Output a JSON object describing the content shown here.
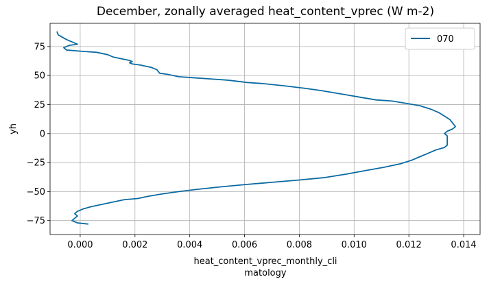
{
  "chart_data": {
    "type": "line",
    "title": "December, zonally averaged heat_content_vprec (W m-2)",
    "xlabel_lines": [
      "heat_content_vprec_monthly_cli",
      "matology"
    ],
    "ylabel": "yh",
    "xlim": [
      -0.0011,
      0.0146
    ],
    "ylim": [
      -87,
      95
    ],
    "xticks": [
      0.0,
      0.002,
      0.004,
      0.006,
      0.008,
      0.01,
      0.012,
      0.014
    ],
    "xtick_labels": [
      "0.000",
      "0.002",
      "0.004",
      "0.006",
      "0.008",
      "0.010",
      "0.012",
      "0.014"
    ],
    "yticks": [
      -75,
      -50,
      -25,
      0,
      25,
      50,
      75
    ],
    "ytick_labels": [
      "−75",
      "−50",
      "−25",
      "0",
      "25",
      "50",
      "75"
    ],
    "grid": true,
    "legend": {
      "position": "top-right",
      "entries": [
        "070"
      ]
    },
    "colors": {
      "series": "#0a6aa1"
    },
    "series": [
      {
        "name": "070",
        "points": [
          [
            -0.00085,
            88
          ],
          [
            -0.0008,
            85
          ],
          [
            -0.0005,
            81
          ],
          [
            -0.0003,
            79
          ],
          [
            -0.0001,
            77
          ],
          [
            -0.0004,
            76
          ],
          [
            -0.0006,
            74
          ],
          [
            -0.0005,
            72
          ],
          [
            0.0,
            71
          ],
          [
            0.0006,
            70
          ],
          [
            0.001,
            68
          ],
          [
            0.0012,
            66
          ],
          [
            0.0016,
            64
          ],
          [
            0.0018,
            63
          ],
          [
            0.0019,
            62
          ],
          [
            0.0018,
            61
          ],
          [
            0.0019,
            60
          ],
          [
            0.0022,
            59
          ],
          [
            0.0024,
            58
          ],
          [
            0.0026,
            57
          ],
          [
            0.0028,
            55
          ],
          [
            0.0029,
            52
          ],
          [
            0.0032,
            51
          ],
          [
            0.0036,
            49
          ],
          [
            0.0042,
            48
          ],
          [
            0.0048,
            47
          ],
          [
            0.0054,
            46
          ],
          [
            0.0061,
            44
          ],
          [
            0.0067,
            43
          ],
          [
            0.0075,
            41
          ],
          [
            0.0082,
            39
          ],
          [
            0.0088,
            37
          ],
          [
            0.0093,
            35
          ],
          [
            0.0098,
            33
          ],
          [
            0.0103,
            31
          ],
          [
            0.0108,
            29
          ],
          [
            0.0114,
            28
          ],
          [
            0.0119,
            26
          ],
          [
            0.0124,
            24
          ],
          [
            0.0128,
            21
          ],
          [
            0.0131,
            18
          ],
          [
            0.0133,
            15
          ],
          [
            0.0135,
            12
          ],
          [
            0.0136,
            9
          ],
          [
            0.0137,
            6
          ],
          [
            0.0136,
            4
          ],
          [
            0.0134,
            2
          ],
          [
            0.0133,
            0
          ],
          [
            0.0134,
            -2
          ],
          [
            0.0134,
            -4
          ],
          [
            0.0134,
            -6
          ],
          [
            0.0134,
            -8
          ],
          [
            0.0134,
            -10
          ],
          [
            0.0133,
            -12
          ],
          [
            0.013,
            -14
          ],
          [
            0.0127,
            -17
          ],
          [
            0.0124,
            -20
          ],
          [
            0.0121,
            -23
          ],
          [
            0.0117,
            -26
          ],
          [
            0.0111,
            -29
          ],
          [
            0.0104,
            -32
          ],
          [
            0.0097,
            -35
          ],
          [
            0.0089,
            -38
          ],
          [
            0.008,
            -40
          ],
          [
            0.007,
            -42
          ],
          [
            0.006,
            -44
          ],
          [
            0.0051,
            -46
          ],
          [
            0.0043,
            -48
          ],
          [
            0.0036,
            -50
          ],
          [
            0.003,
            -52
          ],
          [
            0.0025,
            -54
          ],
          [
            0.0021,
            -56
          ],
          [
            0.0016,
            -57
          ],
          [
            0.0012,
            -59
          ],
          [
            0.0008,
            -61
          ],
          [
            0.0004,
            -63
          ],
          [
            0.0001,
            -65
          ],
          [
            -0.0001,
            -67
          ],
          [
            -0.0002,
            -69
          ],
          [
            -0.0001,
            -71
          ],
          [
            -0.0002,
            -73
          ],
          [
            -0.0003,
            -75
          ],
          [
            -0.0002,
            -76
          ],
          [
            -0.0001,
            -77
          ],
          [
            0.0003,
            -78
          ]
        ]
      }
    ]
  }
}
